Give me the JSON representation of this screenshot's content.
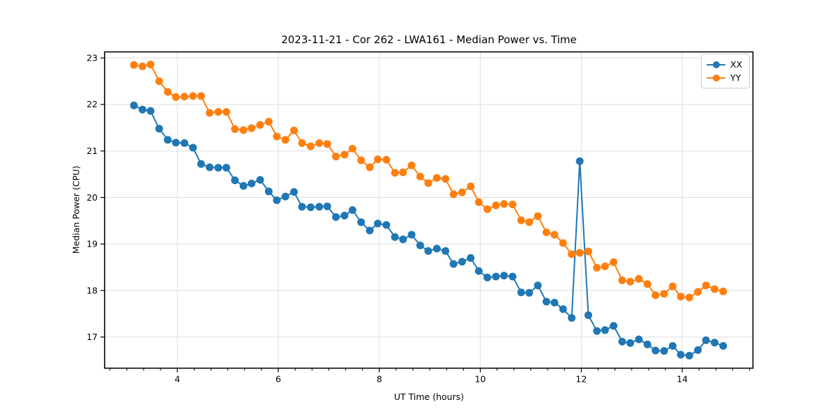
{
  "figure": {
    "background": "#ffffff",
    "spine_color": "#000000",
    "grid_color": "#dedede",
    "tick_label_color": "#000000"
  },
  "chart_data": {
    "type": "line",
    "title": "2023-11-21 - Cor 262 - LWA161 - Median Power vs. Time",
    "xlabel": "UT Time (hours)",
    "ylabel": "Median Power (CPU)",
    "xlim": [
      2.56,
      15.4
    ],
    "ylim": [
      16.33,
      23.13
    ],
    "x_major_ticks": [
      4,
      6,
      8,
      10,
      12,
      14
    ],
    "y_major_ticks": [
      17,
      18,
      19,
      20,
      21,
      22,
      23
    ],
    "x_minor_tick_step": 0.33333,
    "grid": "major-both",
    "marker": "circle",
    "legend_position": "upper-right",
    "x": [
      3.14,
      3.31,
      3.47,
      3.64,
      3.81,
      3.97,
      4.14,
      4.31,
      4.47,
      4.64,
      4.81,
      4.97,
      5.14,
      5.31,
      5.47,
      5.64,
      5.81,
      5.97,
      6.14,
      6.31,
      6.47,
      6.64,
      6.81,
      6.97,
      7.14,
      7.31,
      7.47,
      7.64,
      7.81,
      7.97,
      8.14,
      8.31,
      8.47,
      8.64,
      8.81,
      8.97,
      9.14,
      9.31,
      9.47,
      9.64,
      9.81,
      9.97,
      10.14,
      10.31,
      10.47,
      10.64,
      10.81,
      10.97,
      11.14,
      11.31,
      11.47,
      11.64,
      11.81,
      11.97,
      12.14,
      12.31,
      12.47,
      12.64,
      12.81,
      12.97,
      13.14,
      13.31,
      13.47,
      13.64,
      13.81,
      13.97,
      14.14,
      14.31,
      14.47,
      14.64,
      14.81
    ],
    "series": [
      {
        "name": "XX",
        "color": "#1f77b4",
        "values": [
          21.98,
          21.89,
          21.86,
          21.48,
          21.24,
          21.18,
          21.17,
          21.07,
          20.72,
          20.65,
          20.64,
          20.64,
          20.37,
          20.25,
          20.3,
          20.38,
          20.13,
          19.94,
          20.02,
          20.12,
          19.8,
          19.79,
          19.8,
          19.81,
          19.58,
          19.61,
          19.73,
          19.47,
          19.29,
          19.44,
          19.41,
          19.15,
          19.1,
          19.2,
          18.97,
          18.85,
          18.9,
          18.85,
          18.57,
          18.62,
          18.7,
          18.42,
          18.28,
          18.3,
          18.32,
          18.3,
          17.96,
          17.95,
          18.11,
          17.76,
          17.74,
          17.6,
          17.41,
          20.78,
          17.47,
          17.13,
          17.15,
          17.24,
          16.9,
          16.87,
          16.95,
          16.84,
          16.71,
          16.7,
          16.81,
          16.62,
          16.6,
          16.72,
          16.93,
          16.88,
          16.81
        ]
      },
      {
        "name": "YY",
        "color": "#ff7f0e",
        "values": [
          22.85,
          22.82,
          22.86,
          22.5,
          22.27,
          22.16,
          22.17,
          22.18,
          22.18,
          21.82,
          21.84,
          21.84,
          21.47,
          21.45,
          21.49,
          21.56,
          21.63,
          21.31,
          21.24,
          21.44,
          21.17,
          21.1,
          21.17,
          21.15,
          20.88,
          20.92,
          21.05,
          20.8,
          20.65,
          20.82,
          20.81,
          20.53,
          20.54,
          20.69,
          20.45,
          20.31,
          20.42,
          20.4,
          20.07,
          20.11,
          20.24,
          19.9,
          19.75,
          19.83,
          19.86,
          19.85,
          19.51,
          19.47,
          19.6,
          19.25,
          19.2,
          19.02,
          18.78,
          18.81,
          18.84,
          18.49,
          18.52,
          18.61,
          18.22,
          18.19,
          18.25,
          18.14,
          17.9,
          17.93,
          18.09,
          17.87,
          17.85,
          17.97,
          18.11,
          18.03,
          17.98
        ]
      }
    ]
  }
}
